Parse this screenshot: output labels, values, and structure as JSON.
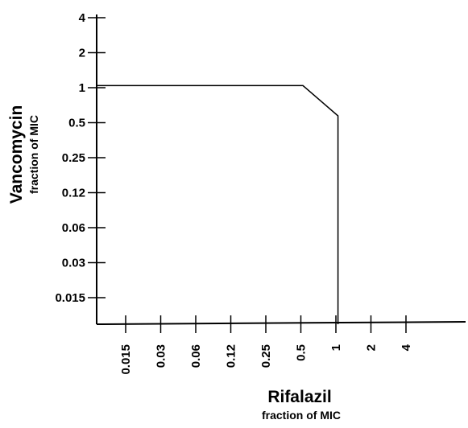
{
  "chart_data": {
    "type": "line",
    "title": "",
    "x_axis": {
      "label": "Rifalazil",
      "sublabel": "fraction of MIC",
      "scale": "log2",
      "ticks": [
        "0.015",
        "0.03",
        "0.06",
        "0.12",
        "0.25",
        "0.5",
        "1",
        "2",
        "4"
      ]
    },
    "y_axis": {
      "label": "Vancomycin",
      "sublabel": "fraction of MIC",
      "scale": "log2",
      "ticks": [
        "0.015",
        "0.03",
        "0.06",
        "0.12",
        "0.25",
        "0.5",
        "1",
        "2",
        "4"
      ]
    },
    "series": [
      {
        "points": [
          {
            "x": 0.0075,
            "y": 1.0
          },
          {
            "x": 0.5,
            "y": 1.0
          },
          {
            "x": 1.0,
            "y": 0.55
          },
          {
            "x": 1.0,
            "y": 0.0075
          }
        ]
      }
    ],
    "grid": false,
    "legend": "none"
  }
}
